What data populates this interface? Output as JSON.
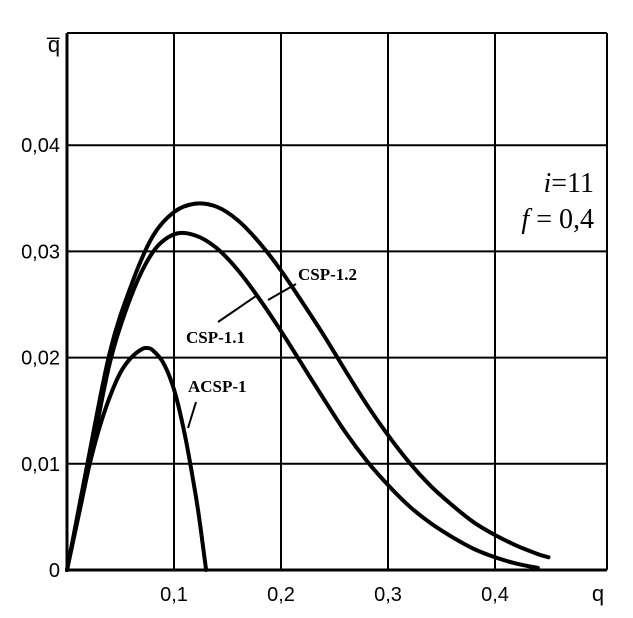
{
  "chart_data": {
    "type": "line",
    "xlabel": "q",
    "ylabel": "q̅",
    "xlim": [
      0,
      0.5
    ],
    "ylim": [
      0,
      0.05
    ],
    "x_ticks": [
      {
        "value": 0.1,
        "label": "0,1"
      },
      {
        "value": 0.2,
        "label": "0,2"
      },
      {
        "value": 0.3,
        "label": "0,3"
      },
      {
        "value": 0.4,
        "label": "0,4"
      }
    ],
    "y_ticks": [
      {
        "value": 0,
        "label": "0"
      },
      {
        "value": 0.01,
        "label": "0,01"
      },
      {
        "value": 0.02,
        "label": "0,02"
      },
      {
        "value": 0.03,
        "label": "0,03"
      },
      {
        "value": 0.04,
        "label": "0,04"
      }
    ],
    "grid": true,
    "parameters": {
      "i_var": "i",
      "i_value": "=11",
      "f_var": "f",
      "f_value": " = 0,4"
    },
    "series": [
      {
        "name": "CSP-1.2",
        "x": [
          0,
          0.02,
          0.04,
          0.06,
          0.08,
          0.1,
          0.12,
          0.14,
          0.16,
          0.18,
          0.2,
          0.22,
          0.24,
          0.26,
          0.28,
          0.3,
          0.32,
          0.34,
          0.36,
          0.38,
          0.4,
          0.42,
          0.44,
          0.45
        ],
        "y": [
          0,
          0.0105,
          0.0205,
          0.0268,
          0.0314,
          0.0337,
          0.0345,
          0.0342,
          0.0329,
          0.0308,
          0.0282,
          0.0252,
          0.0221,
          0.0188,
          0.0156,
          0.0127,
          0.0101,
          0.0079,
          0.0061,
          0.0045,
          0.0033,
          0.0023,
          0.0015,
          0.0012
        ]
      },
      {
        "name": "CSP-1.1",
        "x": [
          0,
          0.02,
          0.04,
          0.06,
          0.08,
          0.1,
          0.12,
          0.14,
          0.16,
          0.18,
          0.2,
          0.22,
          0.24,
          0.26,
          0.28,
          0.3,
          0.32,
          0.34,
          0.36,
          0.38,
          0.4,
          0.42,
          0.44
        ],
        "y": [
          0,
          0.0095,
          0.0195,
          0.0258,
          0.0299,
          0.0316,
          0.0315,
          0.0303,
          0.0282,
          0.0255,
          0.0225,
          0.0193,
          0.0161,
          0.013,
          0.0103,
          0.008,
          0.006,
          0.0044,
          0.0031,
          0.002,
          0.0012,
          0.0006,
          0.0002
        ]
      },
      {
        "name": "ACSP-1",
        "x": [
          0,
          0.01,
          0.02,
          0.03,
          0.04,
          0.05,
          0.06,
          0.07,
          0.075,
          0.08,
          0.09,
          0.1,
          0.11,
          0.12,
          0.125,
          0.13
        ],
        "y": [
          0,
          0.005,
          0.0095,
          0.0133,
          0.0163,
          0.0186,
          0.02,
          0.0208,
          0.0209,
          0.0207,
          0.0195,
          0.017,
          0.0128,
          0.0072,
          0.0038,
          0
        ]
      }
    ],
    "annotations": [
      {
        "text": "CSP-1.2"
      },
      {
        "text": "CSP-1.1"
      },
      {
        "text": "ACSP-1"
      }
    ]
  }
}
